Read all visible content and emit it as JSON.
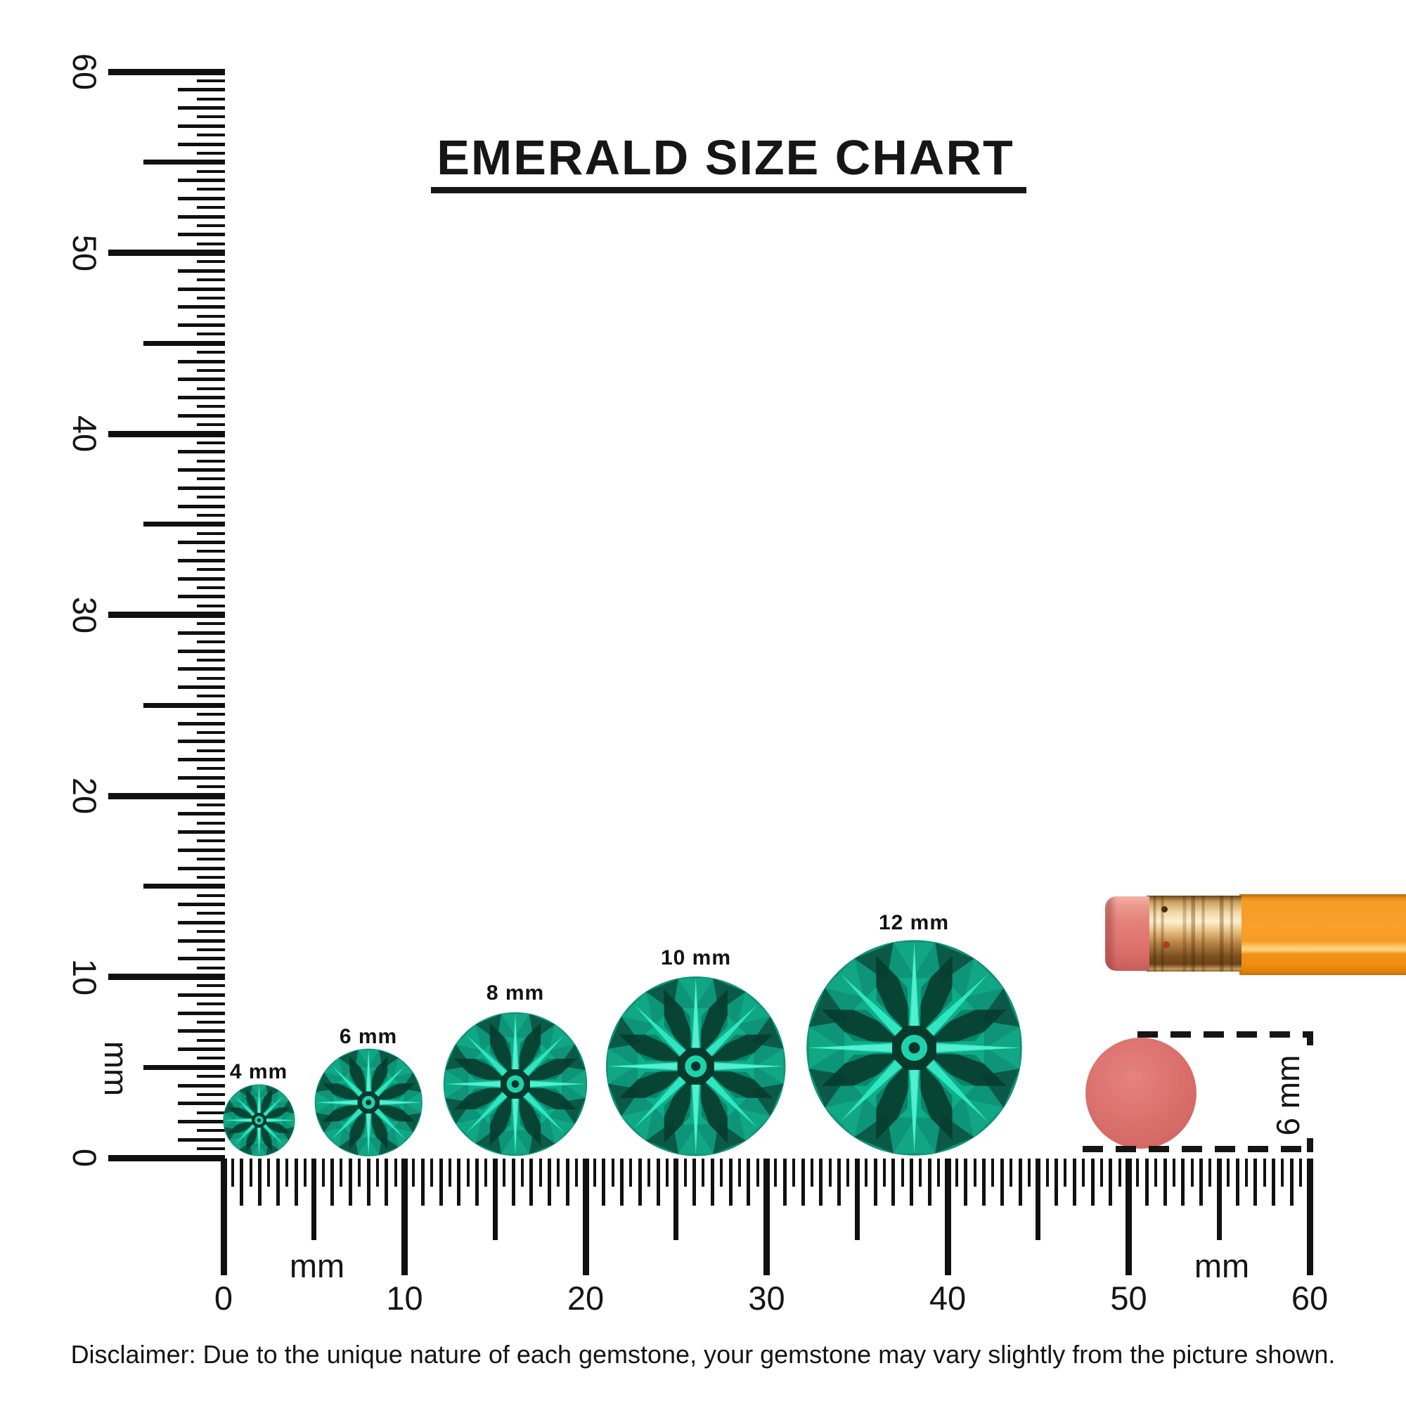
{
  "title": "EMERALD SIZE CHART",
  "ruler": {
    "unit": "mm",
    "range_mm": [
      0,
      60
    ],
    "minor_step_mm": 0.5,
    "vertical_labels": [
      "0",
      "10",
      "20",
      "30",
      "40",
      "50",
      "60"
    ],
    "horizontal_labels": [
      "0",
      "10",
      "20",
      "30",
      "40",
      "50",
      "60"
    ]
  },
  "gems": [
    {
      "label": "4 mm",
      "size_mm": 4
    },
    {
      "label": "6 mm",
      "size_mm": 6
    },
    {
      "label": "8 mm",
      "size_mm": 8
    },
    {
      "label": "10 mm",
      "size_mm": 10
    },
    {
      "label": "12 mm",
      "size_mm": 12
    }
  ],
  "comparison": {
    "object": "pencil-eraser",
    "diameter_label": "6 mm"
  },
  "disclaimer": "Disclaimer: Due to the unique nature of each gemstone, your gemstone may vary slightly from the picture shown.",
  "colors": {
    "ink": "#161616",
    "gem_base": "#0e9478",
    "gem_dark_facet": "#063d2f",
    "gem_bright_ray": "#2fe6c0",
    "gem_highlight": "#55efcf",
    "pencil_orange": "#f89b26",
    "ferrule_gold": "#e4bc7e",
    "eraser_pink": "#e4837b",
    "eraser_circle_pink": "#d76b67"
  }
}
